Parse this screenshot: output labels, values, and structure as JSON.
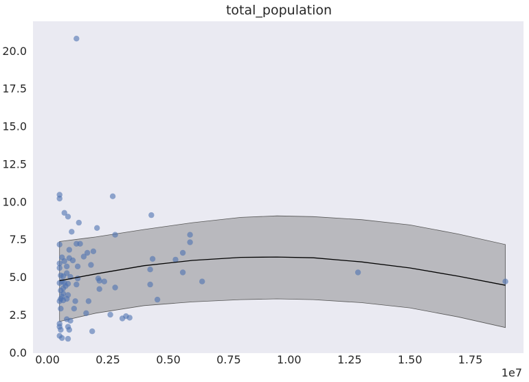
{
  "chart_data": {
    "type": "scatter",
    "title": "total_population",
    "xlabel": "",
    "ylabel": "",
    "x_offset_label": "1e7",
    "x_scale": 10000000,
    "xlim": [
      -600000,
      19700000
    ],
    "ylim": [
      -0.05,
      21.95
    ],
    "x_ticks": [
      0,
      2500000,
      5000000,
      7500000,
      10000000,
      12500000,
      15000000,
      17500000
    ],
    "x_tick_labels": [
      "0.00",
      "0.25",
      "0.50",
      "0.75",
      "1.00",
      "1.25",
      "1.50",
      "1.75"
    ],
    "y_ticks": [
      0,
      2.5,
      5,
      7.5,
      10,
      12.5,
      15,
      17.5,
      20
    ],
    "y_tick_labels": [
      "0.0",
      "2.5",
      "5.0",
      "7.5",
      "10.0",
      "12.5",
      "15.0",
      "17.5",
      "20.0"
    ],
    "grid": false,
    "colors": {
      "background": "#eaeaf2",
      "points": "#4c72b0",
      "band": "#7f7f7f",
      "fit_line": "#000000",
      "text": "#262626"
    },
    "points": [
      [
        1200000,
        20.8
      ],
      [
        500000,
        10.45
      ],
      [
        500000,
        10.2
      ],
      [
        700000,
        9.25
      ],
      [
        850000,
        9.0
      ],
      [
        1300000,
        8.6
      ],
      [
        1000000,
        8.0
      ],
      [
        500000,
        7.15
      ],
      [
        1200000,
        7.2
      ],
      [
        1350000,
        7.2
      ],
      [
        900000,
        6.8
      ],
      [
        1650000,
        6.6
      ],
      [
        1900000,
        6.7
      ],
      [
        600000,
        6.3
      ],
      [
        900000,
        6.25
      ],
      [
        700000,
        6.05
      ],
      [
        1050000,
        6.1
      ],
      [
        500000,
        5.9
      ],
      [
        1500000,
        6.35
      ],
      [
        500000,
        5.6
      ],
      [
        800000,
        5.7
      ],
      [
        1250000,
        5.7
      ],
      [
        1800000,
        5.8
      ],
      [
        800000,
        5.25
      ],
      [
        550000,
        5.1
      ],
      [
        650000,
        5.05
      ],
      [
        950000,
        5.0
      ],
      [
        1250000,
        4.9
      ],
      [
        600000,
        4.7
      ],
      [
        700000,
        4.6
      ],
      [
        850000,
        4.55
      ],
      [
        1200000,
        4.5
      ],
      [
        500000,
        4.6
      ],
      [
        750000,
        4.4
      ],
      [
        650000,
        4.25
      ],
      [
        550000,
        4.1
      ],
      [
        650000,
        3.9
      ],
      [
        850000,
        3.8
      ],
      [
        600000,
        3.7
      ],
      [
        550000,
        3.55
      ],
      [
        800000,
        3.55
      ],
      [
        500000,
        3.4
      ],
      [
        650000,
        3.45
      ],
      [
        1150000,
        3.4
      ],
      [
        1700000,
        3.4
      ],
      [
        550000,
        2.9
      ],
      [
        1100000,
        2.9
      ],
      [
        1600000,
        2.6
      ],
      [
        2600000,
        2.5
      ],
      [
        800000,
        2.2
      ],
      [
        950000,
        2.1
      ],
      [
        500000,
        1.9
      ],
      [
        500000,
        1.7
      ],
      [
        850000,
        1.7
      ],
      [
        550000,
        1.5
      ],
      [
        900000,
        1.5
      ],
      [
        1850000,
        1.4
      ],
      [
        500000,
        1.1
      ],
      [
        600000,
        0.95
      ],
      [
        850000,
        0.9
      ],
      [
        2050000,
        8.25
      ],
      [
        2700000,
        10.35
      ],
      [
        2800000,
        7.8
      ],
      [
        2100000,
        4.9
      ],
      [
        2150000,
        4.75
      ],
      [
        2350000,
        4.7
      ],
      [
        2150000,
        4.2
      ],
      [
        2800000,
        4.3
      ],
      [
        3250000,
        2.4
      ],
      [
        3400000,
        2.3
      ],
      [
        3100000,
        2.25
      ],
      [
        4300000,
        9.1
      ],
      [
        4350000,
        6.2
      ],
      [
        4250000,
        5.5
      ],
      [
        4250000,
        4.5
      ],
      [
        4550000,
        3.5
      ],
      [
        5300000,
        6.15
      ],
      [
        5600000,
        6.6
      ],
      [
        5900000,
        7.8
      ],
      [
        5900000,
        7.3
      ],
      [
        5600000,
        5.3
      ],
      [
        6400000,
        4.7
      ],
      [
        12850000,
        5.3
      ],
      [
        18950000,
        4.7
      ]
    ],
    "fit_line": {
      "x": [
        500000,
        2000000,
        4000000,
        6000000,
        8000000,
        9500000,
        11000000,
        13000000,
        15000000,
        17000000,
        18950000
      ],
      "y": [
        4.75,
        5.2,
        5.75,
        6.1,
        6.3,
        6.32,
        6.27,
        6.0,
        5.6,
        5.05,
        4.45
      ]
    },
    "confidence_band": {
      "x": [
        500000,
        2000000,
        4000000,
        6000000,
        8000000,
        9500000,
        11000000,
        13000000,
        15000000,
        17000000,
        18950000
      ],
      "upper": [
        7.35,
        7.65,
        8.15,
        8.6,
        8.95,
        9.05,
        9.0,
        8.8,
        8.45,
        7.85,
        7.15
      ],
      "lower": [
        2.05,
        2.6,
        3.1,
        3.35,
        3.5,
        3.55,
        3.5,
        3.3,
        2.95,
        2.35,
        1.65
      ]
    }
  }
}
